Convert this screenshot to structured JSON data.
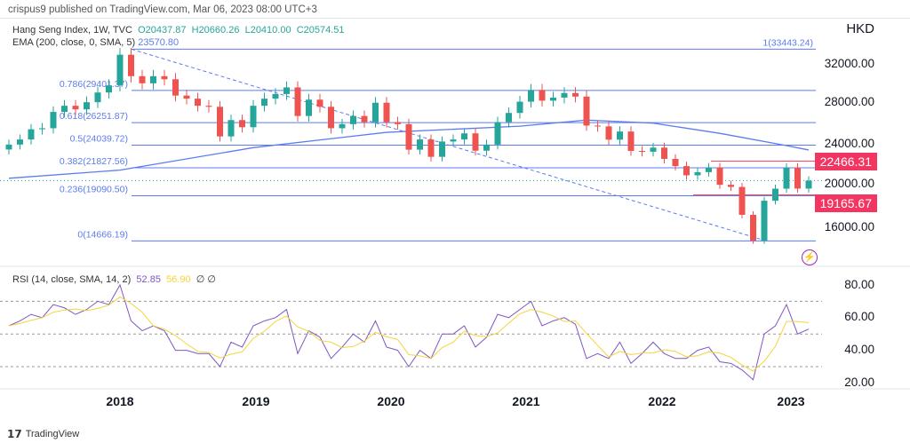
{
  "publish_line": "crispus9 published on TradingView.com, Mar 06, 2023 08:00 UTC+3",
  "legend": {
    "symbol": "Hang Seng Index, 1W, TVC",
    "o": "O20437.87",
    "h": "H20660.26",
    "l": "L20410.00",
    "c": "C20574.51",
    "ema": "EMA (200, close, 0, SMA, 5)",
    "ema_value": "23570.80",
    "rsi": "RSI (14, close, SMA, 14, 2)",
    "rsi_value": "52.85",
    "rsi_sma_value": "56.90",
    "rsi_extra": "∅ ∅"
  },
  "currency": "HKD",
  "price_ticks": [
    "32000.00",
    "28000.00",
    "24000.00",
    "20000.00",
    "16000.00"
  ],
  "rsi_ticks": [
    "80.00",
    "60.00",
    "40.00",
    "20.00"
  ],
  "year_labels": [
    "2018",
    "2019",
    "2020",
    "2021",
    "2022",
    "2023"
  ],
  "tags": {
    "resistance": "22466.31",
    "support": "19165.67"
  },
  "fib_labels": [
    "1(33443.24)",
    "0.786(29401.37)",
    "0.618(26251.87)",
    "0.5(24039.72)",
    "0.382(21827.56)",
    "0.236(19090.50)",
    "0(14666.19)"
  ],
  "footer": "TradingView",
  "colors": {
    "up": "#26a69a",
    "down": "#ef5350",
    "fib": "#5b7cf0",
    "ema": "#5b7cf0",
    "rsi": "#7e57c2",
    "rsi_sma": "#f5d43c",
    "tag": "#f23661"
  },
  "chart_data": {
    "type": "candlestick",
    "interval": "monthly approximation of weekly chart",
    "start": "2017-03",
    "closes": [
      24100,
      24600,
      25600,
      25700,
      27300,
      27900,
      27550,
      28250,
      29200,
      29900,
      32900,
      30800,
      30100,
      30800,
      30500,
      28900,
      28600,
      27900,
      27800,
      24900,
      26500,
      25800,
      27900,
      28600,
      29050,
      29700,
      26900,
      28500,
      27800,
      25700,
      26100,
      26900,
      26300,
      28200,
      26300,
      26100,
      23600,
      24600,
      22900,
      24400,
      24600,
      25200,
      23500,
      24100,
      26300,
      27200,
      28300,
      29450,
      28400,
      28700,
      29150,
      28800,
      25960,
      25880,
      24580,
      25380,
      23480,
      23400,
      23800,
      22700,
      21990,
      21090,
      21400,
      21860,
      20160,
      19950,
      17220,
      14690,
      18600,
      19780,
      21840,
      19790,
      20574
    ],
    "ema200": [
      [
        0,
        20800
      ],
      [
        10,
        21600
      ],
      [
        22,
        23800
      ],
      [
        34,
        25300
      ],
      [
        46,
        25900
      ],
      [
        52,
        26500
      ],
      [
        58,
        26200
      ],
      [
        64,
        25200
      ],
      [
        70,
        24000
      ],
      [
        72,
        23570
      ]
    ],
    "rsi": [
      55,
      58,
      62,
      60,
      68,
      66,
      62,
      65,
      70,
      68,
      80,
      58,
      52,
      55,
      52,
      40,
      40,
      38,
      38,
      30,
      45,
      42,
      55,
      58,
      60,
      65,
      38,
      52,
      48,
      35,
      42,
      50,
      45,
      58,
      42,
      40,
      30,
      40,
      35,
      50,
      50,
      55,
      42,
      48,
      62,
      60,
      65,
      70,
      55,
      58,
      60,
      56,
      35,
      38,
      35,
      45,
      32,
      38,
      45,
      38,
      35,
      35,
      40,
      42,
      33,
      32,
      28,
      22,
      50,
      55,
      68,
      50,
      53
    ],
    "fib_levels": [
      33443.24,
      29401.37,
      26251.87,
      24039.72,
      21827.56,
      19090.5,
      14666.19
    ],
    "horizontal_levels": [
      22466.31,
      19165.67
    ],
    "current_price": 20574.51,
    "price_range": [
      13000,
      34500
    ],
    "rsi_range": [
      15,
      85
    ],
    "rsi_bands": [
      70,
      50,
      30
    ]
  }
}
